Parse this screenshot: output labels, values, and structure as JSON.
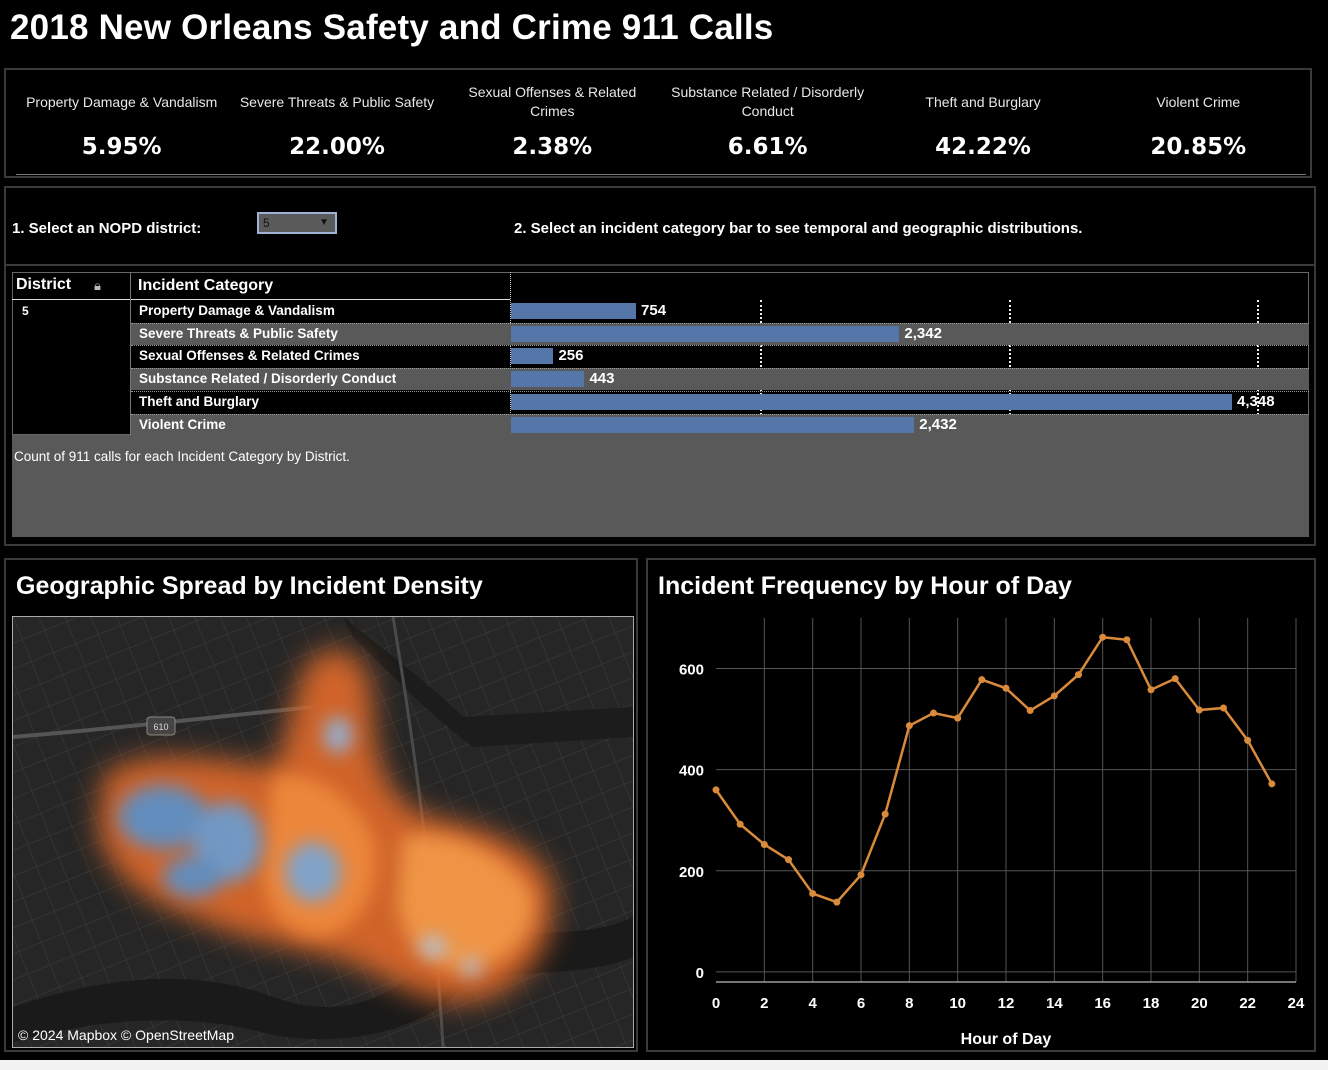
{
  "title": "2018 New Orleans Safety and Crime 911 Calls",
  "kpis": [
    {
      "label": "Property Damage & Vandalism",
      "value": "5.95%"
    },
    {
      "label": "Severe Threats & Public Safety",
      "value": "22.00%"
    },
    {
      "label": "Sexual Offenses & Related Crimes",
      "value": "2.38%"
    },
    {
      "label": "Substance Related / Disorderly Conduct",
      "value": "6.61%"
    },
    {
      "label": "Theft and Burglary",
      "value": "42.22%"
    },
    {
      "label": "Violent Crime",
      "value": "20.85%"
    }
  ],
  "filters": {
    "district_label": "1. Select an NOPD district:",
    "district_value": "5",
    "instruction": "2. Select an incident category bar to see temporal and geographic distributions."
  },
  "table": {
    "district_header": "District",
    "category_header": "Incident Category",
    "district": "5",
    "caption": "Count of 911 calls for each Incident Category by District.",
    "rows": [
      {
        "label": "Property Damage & Vandalism",
        "value": 754,
        "display": "754"
      },
      {
        "label": "Severe Threats & Public Safety",
        "value": 2342,
        "display": "2,342"
      },
      {
        "label": "Sexual Offenses & Related Crimes",
        "value": 256,
        "display": "256"
      },
      {
        "label": "Substance Related / Disorderly Conduct",
        "value": 443,
        "display": "443"
      },
      {
        "label": "Theft and Burglary",
        "value": 4348,
        "display": "4,348"
      },
      {
        "label": "Violent Crime",
        "value": 2432,
        "display": "2,432"
      }
    ],
    "bar_color": "#5576a8",
    "axis_max": 4800,
    "gridlines": [
      1500,
      3000,
      4500
    ]
  },
  "map": {
    "title": "Geographic Spread by Incident Density",
    "attribution": "© 2024 Mapbox  © OpenStreetMap",
    "highway_shield": "610"
  },
  "chart_data": {
    "type": "line",
    "title": "Incident Frequency by Hour of Day",
    "xlabel": "Hour of Day",
    "ylabel": "",
    "x": [
      0,
      1,
      2,
      3,
      4,
      5,
      6,
      7,
      8,
      9,
      10,
      11,
      12,
      13,
      14,
      15,
      16,
      17,
      18,
      19,
      20,
      21,
      22,
      23
    ],
    "series": [
      {
        "values": [
          360,
          292,
          252,
          222,
          155,
          138,
          192,
          312,
          487,
          512,
          502,
          578,
          561,
          517,
          546,
          588,
          662,
          657,
          558,
          580,
          518,
          522,
          458,
          372
        ]
      }
    ],
    "xlim": [
      0,
      24
    ],
    "ylim": [
      -20,
      700
    ],
    "xticks": [
      0,
      2,
      4,
      6,
      8,
      10,
      12,
      14,
      16,
      18,
      20,
      22,
      24
    ],
    "yticks": [
      0,
      200,
      400,
      600
    ],
    "grid": true,
    "color": "#d98a3a"
  }
}
